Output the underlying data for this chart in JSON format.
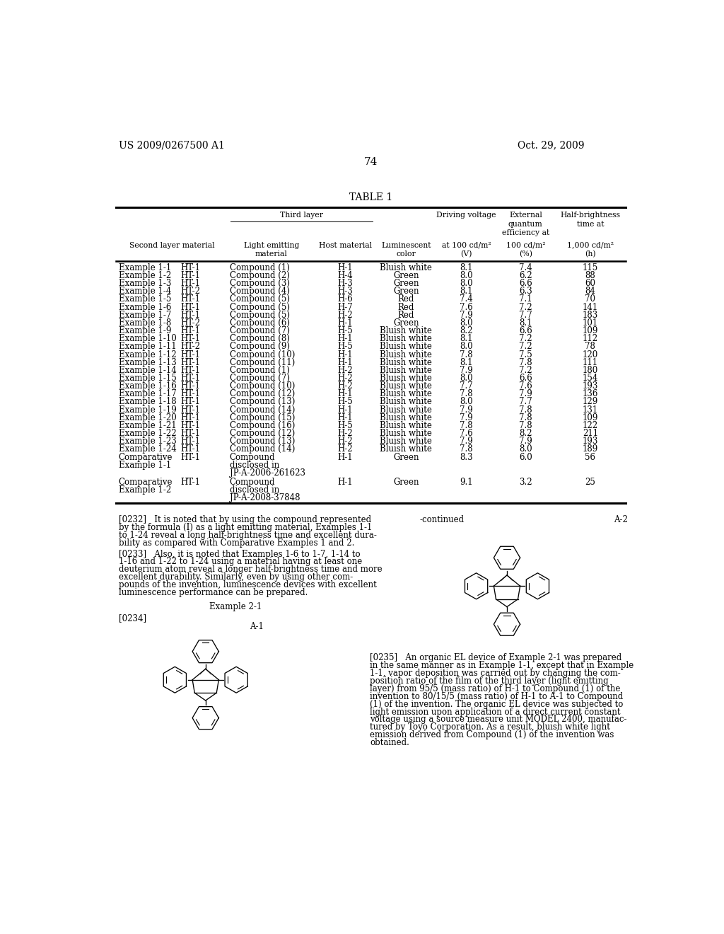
{
  "patent_number": "US 2009/0267500 A1",
  "date": "Oct. 29, 2009",
  "page_number": "74",
  "table_title": "TABLE 1",
  "rows": [
    [
      "Example 1-1",
      "HT-1",
      "Compound (1)",
      "H-1",
      "Bluish white",
      "8.1",
      "7.4",
      "115"
    ],
    [
      "Example 1-2",
      "HT-1",
      "Compound (2)",
      "H-4",
      "Green",
      "8.0",
      "6.2",
      "88"
    ],
    [
      "Example 1-3",
      "HT-1",
      "Compound (3)",
      "H-3",
      "Green",
      "8.0",
      "6.6",
      "60"
    ],
    [
      "Example 1-4",
      "HT-2",
      "Compound (4)",
      "H-3",
      "Green",
      "8.1",
      "6.3",
      "84"
    ],
    [
      "Example 1-5",
      "HT-1",
      "Compound (5)",
      "H-6",
      "Red",
      "7.4",
      "7.1",
      "70"
    ],
    [
      "Example 1-6",
      "HT-1",
      "Compound (5)",
      "H-7",
      "Red",
      "7.6",
      "7.2",
      "141"
    ],
    [
      "Example 1-7",
      "HT-1",
      "Compound (5)",
      "H-2",
      "Red",
      "7.9",
      "7.7",
      "183"
    ],
    [
      "Example 1-8",
      "HT-2",
      "Compound (6)",
      "H-1",
      "Green",
      "8.0",
      "8.1",
      "101"
    ],
    [
      "Example 1-9",
      "HT-1",
      "Compound (7)",
      "H-5",
      "Bluish white",
      "8.2",
      "6.6",
      "109"
    ],
    [
      "Example 1-10",
      "HT-1",
      "Compound (8)",
      "H-1",
      "Bluish white",
      "8.1",
      "7.2",
      "112"
    ],
    [
      "Example 1-11",
      "HT-2",
      "Compound (9)",
      "H-5",
      "Bluish white",
      "8.0",
      "7.2",
      "78"
    ],
    [
      "Example 1-12",
      "HT-1",
      "Compound (10)",
      "H-1",
      "Bluish white",
      "7.8",
      "7.5",
      "120"
    ],
    [
      "Example 1-13",
      "HT-1",
      "Compound (11)",
      "H-1",
      "Bluish white",
      "8.1",
      "7.8",
      "111"
    ],
    [
      "Example 1-14",
      "HT-1",
      "Compound (1)",
      "H-2",
      "Bluish white",
      "7.9",
      "7.2",
      "180"
    ],
    [
      "Example 1-15",
      "HT-1",
      "Compound (7)",
      "H-2",
      "Bluish white",
      "8.0",
      "6.6",
      "154"
    ],
    [
      "Example 1-16",
      "HT-1",
      "Compound (10)",
      "H-2",
      "Bluish white",
      "7.7",
      "7.6",
      "193"
    ],
    [
      "Example 1-17",
      "HT-1",
      "Compound (12)",
      "H-1",
      "Bluish white",
      "7.8",
      "7.9",
      "136"
    ],
    [
      "Example 1-18",
      "HT-1",
      "Compound (13)",
      "H-5",
      "Bluish white",
      "8.0",
      "7.7",
      "129"
    ],
    [
      "Example 1-19",
      "HT-1",
      "Compound (14)",
      "H-1",
      "Bluish white",
      "7.9",
      "7.8",
      "131"
    ],
    [
      "Example 1-20",
      "HT-1",
      "Compound (15)",
      "H-1",
      "Bluish white",
      "7.9",
      "7.8",
      "109"
    ],
    [
      "Example 1-21",
      "HT-1",
      "Compound (16)",
      "H-5",
      "Bluish white",
      "7.8",
      "7.8",
      "122"
    ],
    [
      "Example 1-22",
      "HT-1",
      "Compound (12)",
      "H-2",
      "Bluish white",
      "7.6",
      "8.2",
      "211"
    ],
    [
      "Example 1-23",
      "HT-1",
      "Compound (13)",
      "H-2",
      "Bluish white",
      "7.9",
      "7.9",
      "193"
    ],
    [
      "Example 1-24",
      "HT-1",
      "Compound (14)",
      "H-2",
      "Bluish white",
      "7.8",
      "8.0",
      "189"
    ],
    [
      "Comparative\nExample 1-1",
      "HT-1",
      "Compound\ndisclosed in\nJP-A-2006-261623",
      "H-1",
      "Green",
      "8.3",
      "6.0",
      "56"
    ],
    [
      "Comparative\nExample 1-2",
      "HT-1",
      "Compound\ndisclosed in\nJP-A-2008-37848",
      "H-1",
      "Green",
      "9.1",
      "3.2",
      "25"
    ]
  ],
  "para0232_lines": [
    "[0232]   It is noted that by using the compound represented",
    "by the formula (I) as a light emitting material, Examples 1-1",
    "to 1-24 reveal a long half-brightness time and excellent dura-",
    "bility as compared with Comparative Examples 1 and 2."
  ],
  "para0233_lines": [
    "[0233]   Also, it is noted that Examples 1-6 to 1-7, 1-14 to",
    "1-16 and 1-22 to 1-24 using a material having at least one",
    "deuterium atom reveal a longer half-brightness time and more",
    "excellent durability. Similarly, even by using other com-",
    "pounds of the invention, luminescence devices with excellent",
    "luminescence performance can be prepared."
  ],
  "para0235_lines": [
    "[0235]   An organic EL device of Example 2-1 was prepared",
    "in the same manner as in Example 1-1, except that in Example",
    "1-1, vapor deposition was carried out by changing the com-",
    "position ratio of the film of the third layer (light emitting",
    "layer) from 95/5 (mass ratio) of H-1 to Compound (1) of the",
    "invention to 80/15/5 (mass ratio) of H-1 to A-1 to Compound",
    "(1) of the invention. The organic EL device was subjected to",
    "light emission upon application of a direct current constant",
    "voltage using a source measure unit MODEL 2400, manufac-",
    "tured by Toyo Corporation. As a result, bluish white light",
    "emission derived from Compound (1) of the invention was",
    "obtained."
  ],
  "bg_color": "#ffffff"
}
